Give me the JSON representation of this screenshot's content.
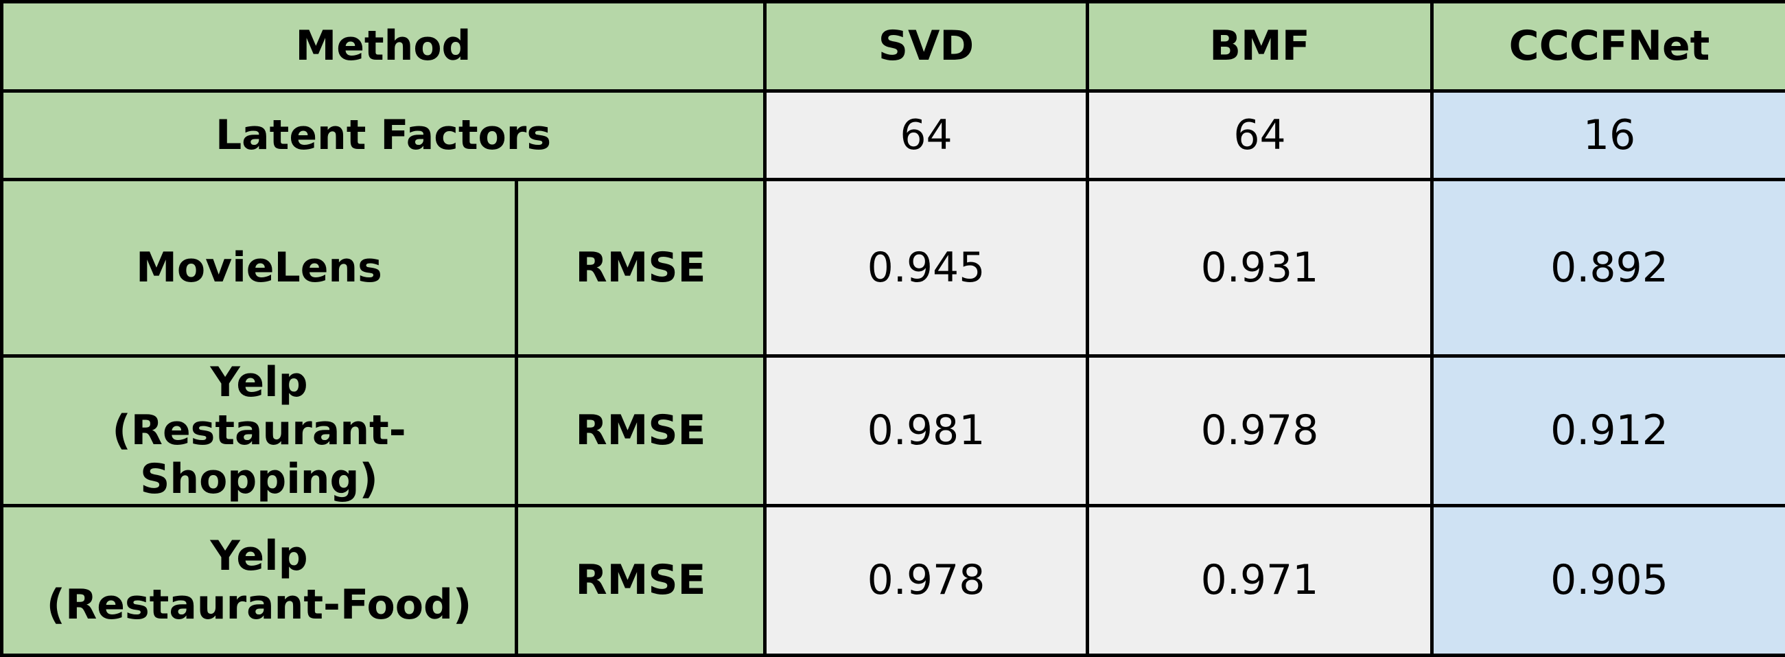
{
  "chart_data": {
    "type": "table",
    "header": {
      "method_label": "Method",
      "methods": [
        "SVD",
        "BMF",
        "CCCFNet"
      ]
    },
    "latent_factors": {
      "label": "Latent Factors",
      "values": [
        "64",
        "64",
        "16"
      ]
    },
    "rows": [
      {
        "dataset_line1": "MovieLens",
        "dataset_line2": "",
        "metric": "RMSE",
        "values": [
          "0.945",
          "0.931",
          "0.892"
        ]
      },
      {
        "dataset_line1": "Yelp",
        "dataset_line2": "(Restaurant-Shopping)",
        "metric": "RMSE",
        "values": [
          "0.981",
          "0.978",
          "0.912"
        ]
      },
      {
        "dataset_line1": "Yelp",
        "dataset_line2": "(Restaurant-Food)",
        "metric": "RMSE",
        "values": [
          "0.978",
          "0.971",
          "0.905"
        ]
      }
    ],
    "colors": {
      "header_green": "#b6d7a8",
      "value_gray": "#efefef",
      "highlight_blue": "#cfe2f3",
      "border": "#000000"
    }
  }
}
